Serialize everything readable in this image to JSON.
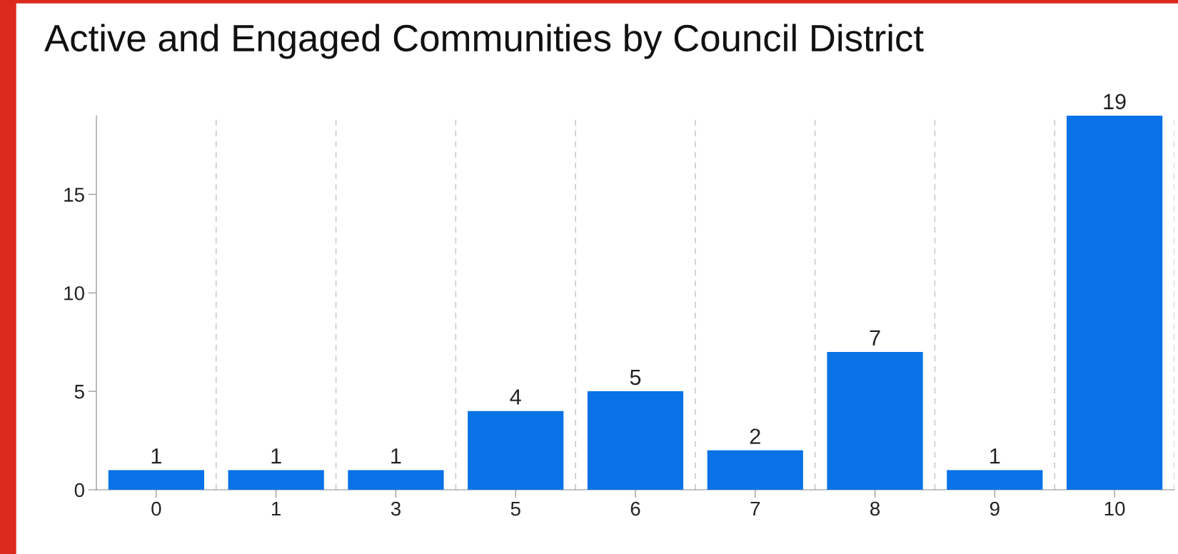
{
  "chart_data": {
    "type": "bar",
    "title": "Active and Engaged Communities by Council District",
    "categories": [
      "0",
      "1",
      "3",
      "5",
      "6",
      "7",
      "8",
      "9",
      "10"
    ],
    "values": [
      1,
      1,
      1,
      4,
      5,
      2,
      7,
      1,
      19
    ],
    "color": "#0872e6",
    "ylim": [
      0,
      19
    ],
    "yticks": [
      0,
      5,
      10,
      15
    ],
    "grid": "x",
    "data_labels": true
  }
}
